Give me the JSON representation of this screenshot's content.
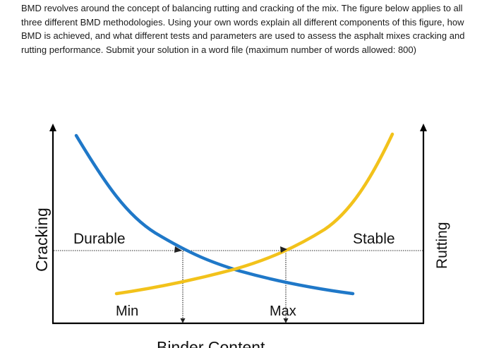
{
  "prompt": {
    "text": "BMD revolves around the concept of balancing rutting and cracking of the mix. The figure below applies to all three different BMD methodologies. Using your own words explain all different components of this figure, how BMD is achieved, and what different tests and parameters are used to assess the asphalt mixes cracking and rutting performance. Submit your solution in a word file (maximum number of words allowed: 800)"
  },
  "figure": {
    "left_axis_label": "Cracking",
    "right_axis_label": "Rutting",
    "x_axis_label": "Binder Content",
    "durable_label": "Durable",
    "stable_label": "Stable",
    "min_label": "Min",
    "max_label": "Max",
    "colors": {
      "cracking_curve": "#1f78c8",
      "rutting_curve": "#f2c21b",
      "axes": "#000000"
    }
  }
}
